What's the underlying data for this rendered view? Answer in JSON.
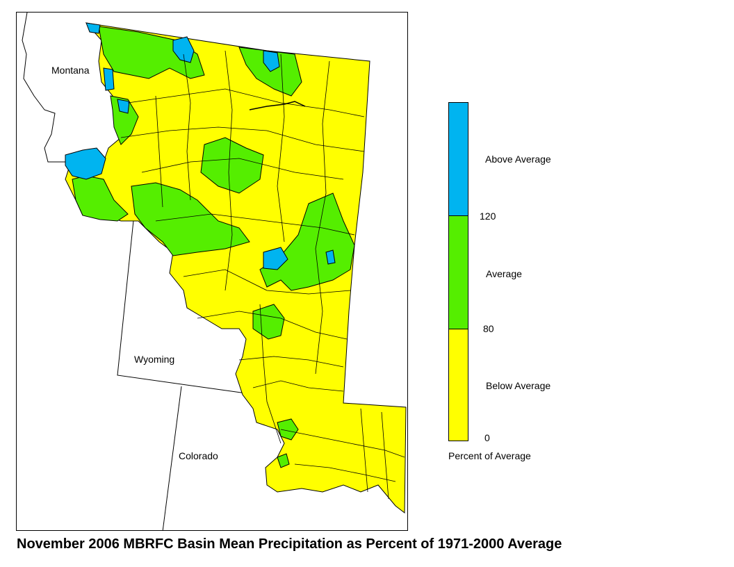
{
  "title": "November 2006 MBRFC Basin Mean Precipitation as Percent of 1971-2000 Average",
  "map": {
    "state_labels": {
      "montana": "Montana",
      "wyoming": "Wyoming",
      "colorado": "Colorado"
    },
    "category_colors": {
      "below": "#ffff00",
      "average": "#55ee00",
      "above": "#00b4f0"
    }
  },
  "legend": {
    "title": "Percent of Average",
    "categories": [
      {
        "label": "Above Average",
        "color": "#00b4f0"
      },
      {
        "label": "Average",
        "color": "#55ee00"
      },
      {
        "label": "Below Average",
        "color": "#ffff00"
      }
    ],
    "breaks": [
      "120",
      "80",
      "0"
    ]
  }
}
